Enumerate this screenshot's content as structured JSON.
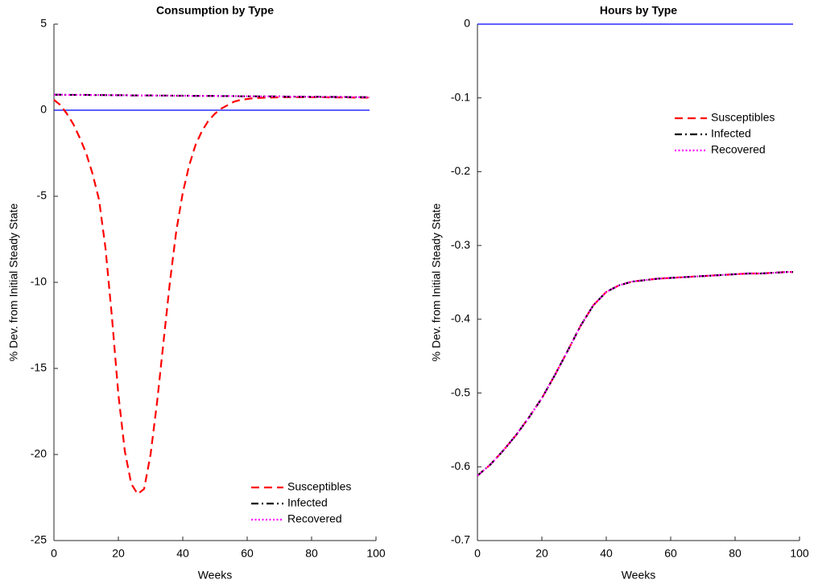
{
  "chart_data": [
    {
      "type": "line",
      "title": "Consumption by Type",
      "xlabel": "Weeks",
      "ylabel": "% Dev. from Initial Steady State",
      "x": [
        0,
        2,
        4,
        6,
        8,
        10,
        12,
        14,
        16,
        18,
        20,
        22,
        24,
        26,
        28,
        30,
        32,
        34,
        36,
        38,
        40,
        42,
        44,
        46,
        48,
        50,
        52,
        54,
        56,
        58,
        60,
        62,
        64,
        66,
        68,
        70,
        72,
        74,
        76,
        78,
        80,
        82,
        84,
        86,
        88,
        90,
        92,
        94,
        96,
        98
      ],
      "series": [
        {
          "name": "Susceptibles",
          "color": "#ff0000",
          "linestyle": "dashed",
          "values": [
            0.6,
            0.3,
            -0.2,
            -0.8,
            -1.6,
            -2.5,
            -3.7,
            -5.2,
            -8.0,
            -12.0,
            -16.5,
            -19.8,
            -21.7,
            -22.3,
            -22.0,
            -20.0,
            -17.0,
            -13.5,
            -10.0,
            -7.0,
            -4.8,
            -3.2,
            -2.0,
            -1.2,
            -0.6,
            -0.2,
            0.1,
            0.3,
            0.5,
            0.6,
            0.65,
            0.7,
            0.72,
            0.73,
            0.74,
            0.75,
            0.75,
            0.75,
            0.75,
            0.75,
            0.75,
            0.75,
            0.75,
            0.74,
            0.74,
            0.74,
            0.74,
            0.73,
            0.73,
            0.73
          ]
        },
        {
          "name": "Infected",
          "color": "#000000",
          "linestyle": "dashdot",
          "values": [
            0.9,
            0.9,
            0.89,
            0.89,
            0.89,
            0.89,
            0.88,
            0.88,
            0.88,
            0.87,
            0.87,
            0.87,
            0.86,
            0.86,
            0.86,
            0.86,
            0.85,
            0.85,
            0.85,
            0.84,
            0.84,
            0.84,
            0.83,
            0.83,
            0.83,
            0.83,
            0.82,
            0.82,
            0.82,
            0.81,
            0.81,
            0.81,
            0.8,
            0.8,
            0.8,
            0.8,
            0.79,
            0.79,
            0.79,
            0.78,
            0.78,
            0.78,
            0.77,
            0.77,
            0.77,
            0.77,
            0.76,
            0.76,
            0.76,
            0.75
          ]
        },
        {
          "name": "Recovered",
          "color": "#ff00ff",
          "linestyle": "dotted",
          "values": [
            0.9,
            0.9,
            0.89,
            0.89,
            0.89,
            0.89,
            0.88,
            0.88,
            0.88,
            0.87,
            0.87,
            0.87,
            0.86,
            0.86,
            0.86,
            0.86,
            0.85,
            0.85,
            0.85,
            0.84,
            0.84,
            0.84,
            0.83,
            0.83,
            0.83,
            0.83,
            0.82,
            0.82,
            0.82,
            0.81,
            0.81,
            0.81,
            0.8,
            0.8,
            0.8,
            0.8,
            0.79,
            0.79,
            0.79,
            0.78,
            0.78,
            0.78,
            0.77,
            0.77,
            0.77,
            0.77,
            0.76,
            0.76,
            0.76,
            0.75
          ]
        }
      ],
      "hline": {
        "value": 0,
        "color": "#0000ff"
      },
      "xlim": [
        0,
        100
      ],
      "xticks": [
        0,
        20,
        40,
        60,
        80,
        100
      ],
      "ylim": [
        -25,
        5
      ],
      "yticks": [
        -25,
        -20,
        -15,
        -10,
        -5,
        0,
        5
      ],
      "legend": "lower right"
    },
    {
      "type": "line",
      "title": "Hours by Type",
      "xlabel": "Weeks",
      "ylabel": "% Dev. from Initial Steady State",
      "x": [
        0,
        4,
        8,
        12,
        16,
        20,
        24,
        28,
        32,
        36,
        40,
        44,
        48,
        52,
        56,
        60,
        64,
        68,
        72,
        76,
        80,
        84,
        88,
        92,
        96,
        98
      ],
      "series": [
        {
          "name": "Susceptibles",
          "color": "#ff0000",
          "linestyle": "dashed",
          "values": [
            -0.612,
            -0.597,
            -0.578,
            -0.557,
            -0.533,
            -0.507,
            -0.476,
            -0.443,
            -0.409,
            -0.381,
            -0.363,
            -0.354,
            -0.349,
            -0.347,
            -0.345,
            -0.344,
            -0.343,
            -0.342,
            -0.341,
            -0.34,
            -0.339,
            -0.338,
            -0.338,
            -0.337,
            -0.336,
            -0.336
          ]
        },
        {
          "name": "Infected",
          "color": "#000000",
          "linestyle": "dashdot",
          "values": [
            -0.612,
            -0.597,
            -0.578,
            -0.557,
            -0.533,
            -0.507,
            -0.476,
            -0.443,
            -0.409,
            -0.381,
            -0.363,
            -0.354,
            -0.349,
            -0.347,
            -0.345,
            -0.344,
            -0.343,
            -0.342,
            -0.341,
            -0.34,
            -0.339,
            -0.338,
            -0.338,
            -0.337,
            -0.336,
            -0.336
          ]
        },
        {
          "name": "Recovered",
          "color": "#ff00ff",
          "linestyle": "dotted",
          "values": [
            -0.612,
            -0.597,
            -0.578,
            -0.557,
            -0.533,
            -0.507,
            -0.476,
            -0.443,
            -0.409,
            -0.381,
            -0.363,
            -0.354,
            -0.349,
            -0.347,
            -0.345,
            -0.344,
            -0.343,
            -0.342,
            -0.341,
            -0.34,
            -0.339,
            -0.338,
            -0.338,
            -0.337,
            -0.336,
            -0.336
          ]
        }
      ],
      "hline": {
        "value": 0,
        "color": "#0000ff"
      },
      "xlim": [
        0,
        100
      ],
      "xticks": [
        0,
        20,
        40,
        60,
        80,
        100
      ],
      "ylim": [
        -0.7,
        0
      ],
      "yticks": [
        -0.7,
        -0.6,
        -0.5,
        -0.4,
        -0.3,
        -0.2,
        -0.1,
        0
      ],
      "legend": "upper right"
    }
  ]
}
